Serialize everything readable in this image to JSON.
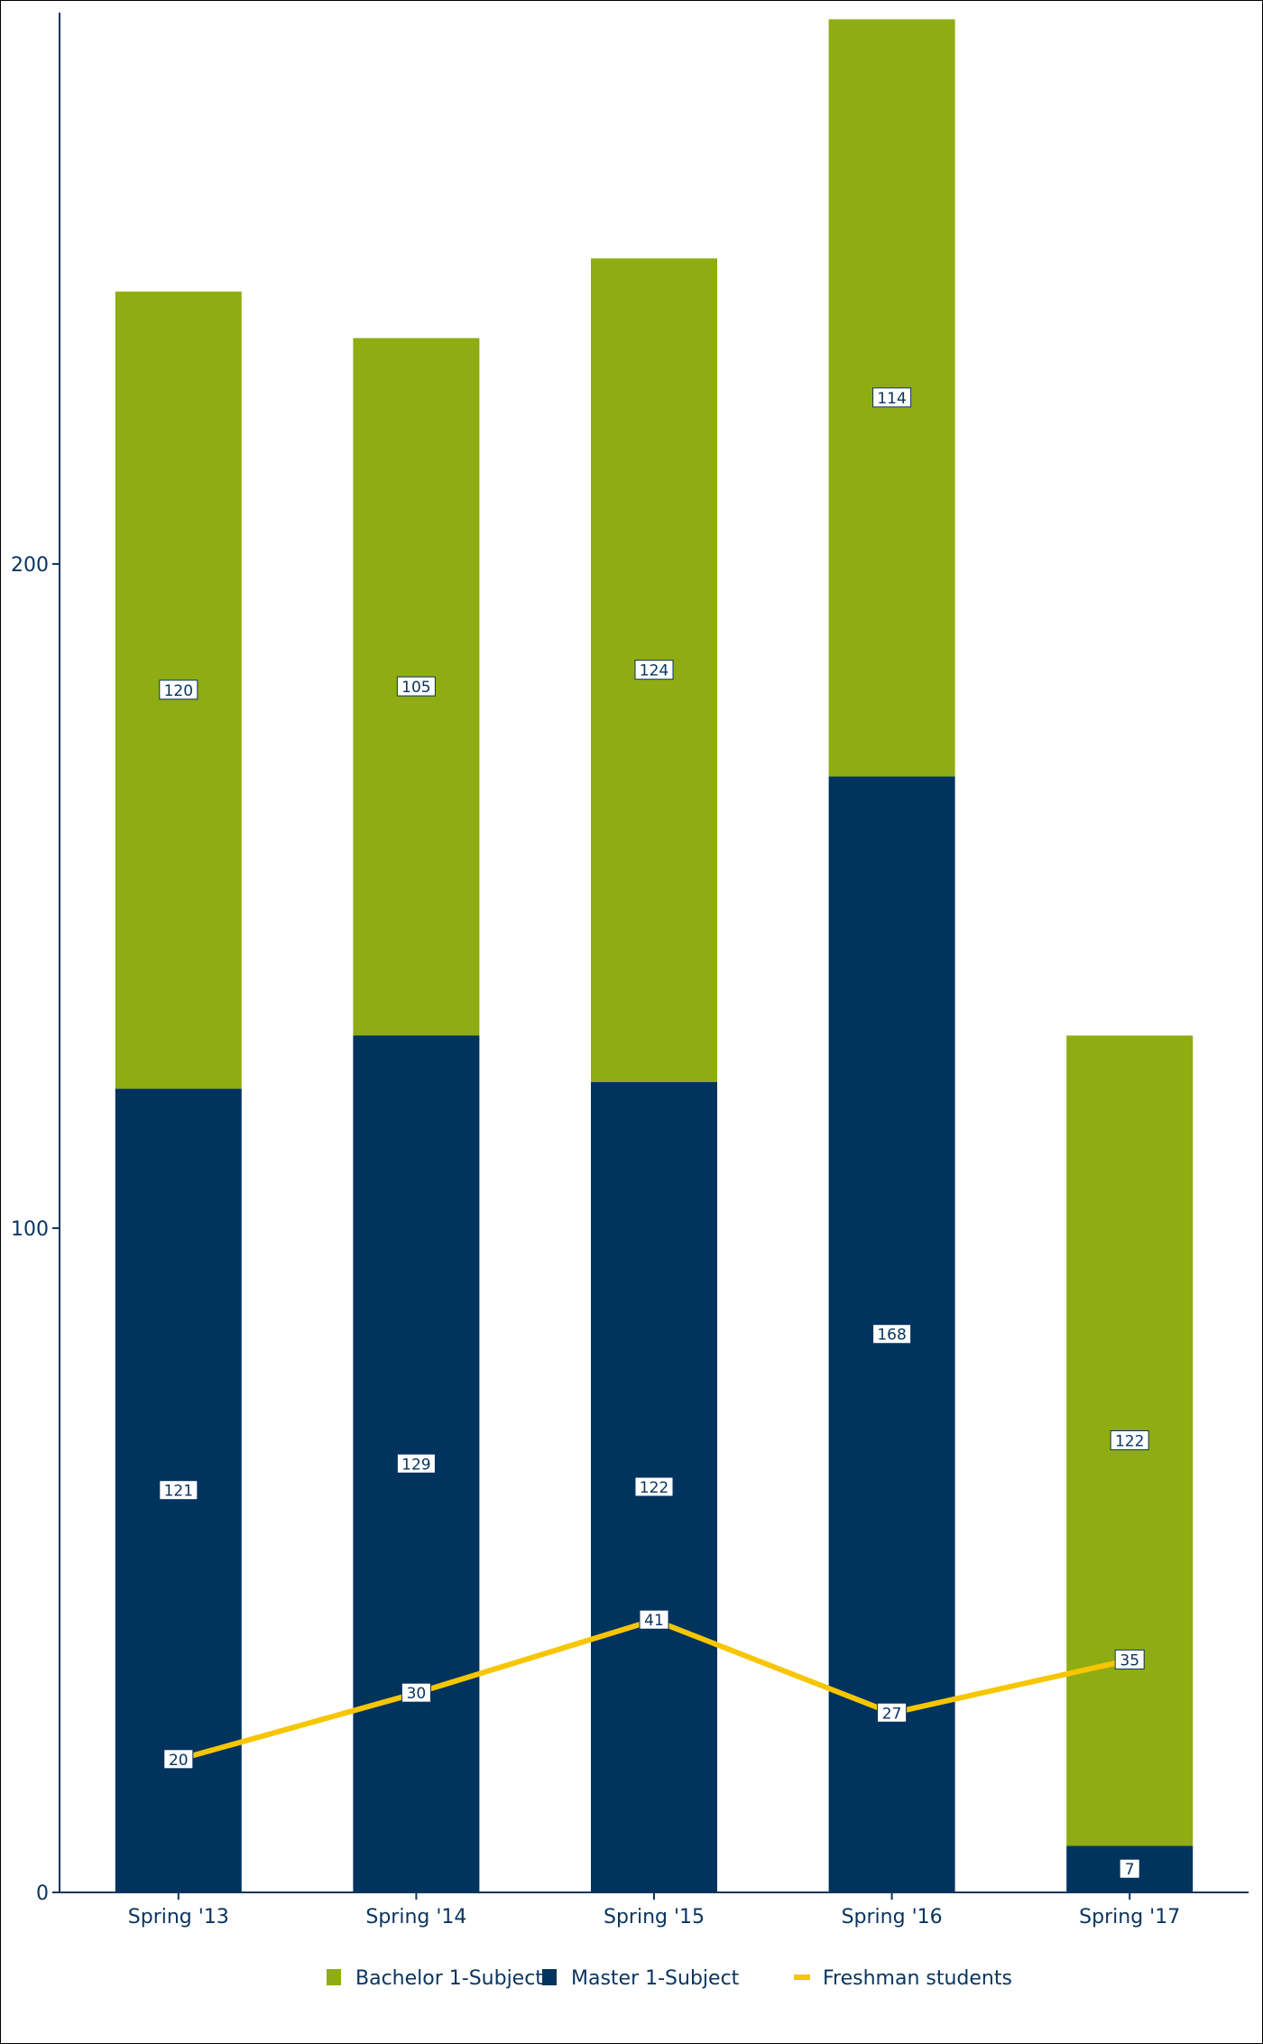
{
  "chart_data": {
    "type": "bar",
    "stacked": true,
    "categories": [
      "Spring '13",
      "Spring '14",
      "Spring '15",
      "Spring '16",
      "Spring '17"
    ],
    "series": [
      {
        "name": "Master 1-Subject",
        "kind": "bar",
        "color": "#00335e",
        "values": [
          121,
          129,
          122,
          168,
          7
        ]
      },
      {
        "name": "Bachelor 1-Subject",
        "kind": "bar",
        "color": "#8fac12",
        "values": [
          120,
          105,
          124,
          114,
          122
        ]
      },
      {
        "name": "Freshman students",
        "kind": "line",
        "color": "#f7c600",
        "values": [
          20,
          30,
          41,
          27,
          35
        ]
      }
    ],
    "ylim": [
      0,
      283
    ],
    "yticks": [
      0,
      100,
      200
    ],
    "ytick_labels": [
      "0",
      "100",
      "200"
    ],
    "grid": false,
    "legend": {
      "position": "bottom",
      "entries": [
        "Bachelor 1-Subject",
        "Master 1-Subject",
        "Freshman students"
      ]
    },
    "title": "",
    "xlabel": "",
    "ylabel": ""
  }
}
